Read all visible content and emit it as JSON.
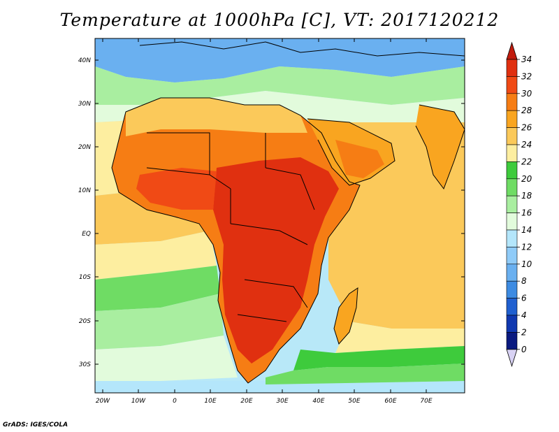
{
  "title": "Temperature at 1000hPa [C], VT: 2017120212",
  "credit": "GrADS: IGES/COLA",
  "map": {
    "lat_labels": [
      "40N",
      "30N",
      "20N",
      "10N",
      "EQ",
      "10S",
      "20S",
      "30S"
    ],
    "lon_labels": [
      "20W",
      "10W",
      "0",
      "10E",
      "20E",
      "30E",
      "40E",
      "50E",
      "60E",
      "70E"
    ]
  },
  "colorbar": {
    "labels": [
      "34",
      "32",
      "30",
      "28",
      "26",
      "24",
      "22",
      "20",
      "18",
      "16",
      "14",
      "12",
      "10",
      "8",
      "6",
      "4",
      "2",
      "0"
    ],
    "colors": [
      "#e03010",
      "#f04a15",
      "#f67d14",
      "#f9a520",
      "#fbc95a",
      "#fdeea0",
      "#3ecb3c",
      "#6fdc64",
      "#a9eea0",
      "#e2fbdc",
      "#b4e6fb",
      "#8fcbf8",
      "#6ab0f0",
      "#3d8be2",
      "#2060d0",
      "#1038b0",
      "#0a1a80"
    ],
    "top_arrow_color": "#c21c0e",
    "bottom_arrow_color": "#d8d2f4"
  }
}
